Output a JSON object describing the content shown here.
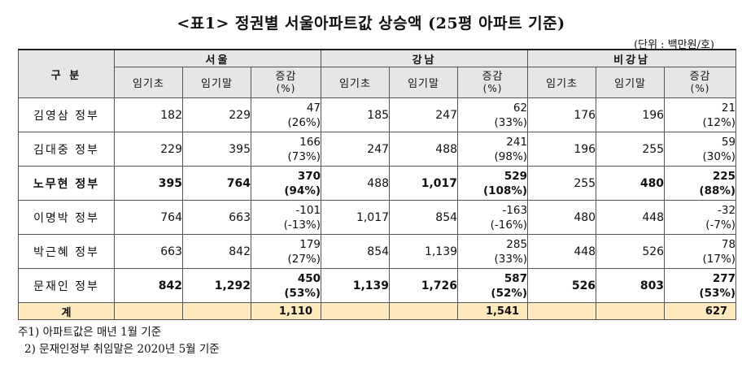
{
  "title": "<표1> 정권별 서울아파트값 상승액 (25평 아파트 기준)",
  "unit": "(단위 : 백만원/호)",
  "header": {
    "gubun": "구 분",
    "groups": [
      "서울",
      "강남",
      "비강남"
    ],
    "start": "임기초",
    "end": "임기말",
    "change": "증감",
    "change_unit": "(%)"
  },
  "rows": [
    {
      "name": "김영삼 정부",
      "bold": false,
      "seoul": {
        "start": "182",
        "end": "229",
        "inc": "47",
        "pct": "(26%)"
      },
      "gangnam": {
        "start": "185",
        "end": "247",
        "inc": "62",
        "pct": "(33%)"
      },
      "non": {
        "start": "176",
        "end": "196",
        "inc": "21",
        "pct": "(12%)"
      }
    },
    {
      "name": "김대중 정부",
      "bold": false,
      "seoul": {
        "start": "229",
        "end": "395",
        "inc": "166",
        "pct": "(73%)"
      },
      "gangnam": {
        "start": "247",
        "end": "488",
        "inc": "241",
        "pct": "(98%)"
      },
      "non": {
        "start": "196",
        "end": "255",
        "inc": "59",
        "pct": "(30%)"
      }
    },
    {
      "name": "노무현 정부",
      "bold": true,
      "seoul": {
        "start": "395",
        "end": "764",
        "inc": "370",
        "pct": "(94%)"
      },
      "gangnam": {
        "start": "488",
        "end": "1,017",
        "inc": "529",
        "pct": "(108%)"
      },
      "non": {
        "start": "255",
        "end": "480",
        "inc": "225",
        "pct": "(88%)"
      }
    },
    {
      "name": "이명박 정부",
      "bold": false,
      "seoul": {
        "start": "764",
        "end": "663",
        "inc": "-101",
        "pct": "(-13%)"
      },
      "gangnam": {
        "start": "1,017",
        "end": "854",
        "inc": "-163",
        "pct": "(-16%)"
      },
      "non": {
        "start": "480",
        "end": "448",
        "inc": "-32",
        "pct": "(-7%)"
      }
    },
    {
      "name": "박근혜 정부",
      "bold": false,
      "seoul": {
        "start": "663",
        "end": "842",
        "inc": "179",
        "pct": "(27%)"
      },
      "gangnam": {
        "start": "854",
        "end": "1,139",
        "inc": "285",
        "pct": "(33%)"
      },
      "non": {
        "start": "448",
        "end": "526",
        "inc": "78",
        "pct": "(17%)"
      }
    },
    {
      "name": "문재인 정부",
      "bold": true,
      "seoul": {
        "start": "842",
        "end": "1,292",
        "inc": "450",
        "pct": "(53%)"
      },
      "gangnam": {
        "start": "1,139",
        "end": "1,726",
        "inc": "587",
        "pct": "(52%)"
      },
      "non": {
        "start": "526",
        "end": "803",
        "inc": "277",
        "pct": "(53%)"
      }
    }
  ],
  "total": {
    "label": "계",
    "seoul": "1,110",
    "gangnam": "1,541",
    "non": "627"
  },
  "notes": [
    "주1) 아파트값은 매년 1월 기준",
    "2) 문재인정부 취임말은 2020년 5월 기준"
  ]
}
